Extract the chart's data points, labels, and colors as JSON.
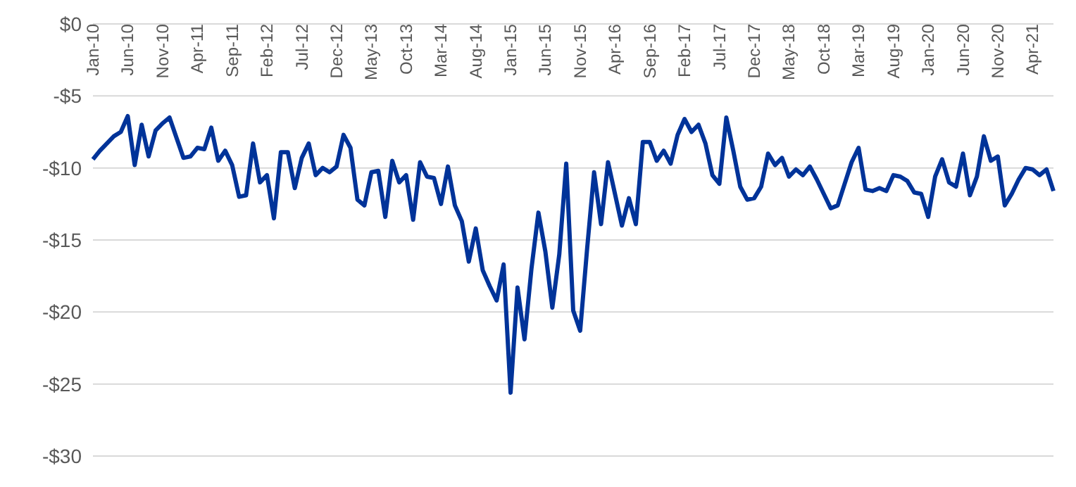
{
  "chart_data": {
    "type": "line",
    "categories": [
      "Jan-10",
      null,
      null,
      null,
      null,
      "Jun-10",
      null,
      null,
      null,
      null,
      "Nov-10",
      null,
      null,
      null,
      null,
      "Apr-11",
      null,
      null,
      null,
      null,
      "Sep-11",
      null,
      null,
      null,
      null,
      "Feb-12",
      null,
      null,
      null,
      null,
      "Jul-12",
      null,
      null,
      null,
      null,
      "Dec-12",
      null,
      null,
      null,
      null,
      "May-13",
      null,
      null,
      null,
      null,
      "Oct-13",
      null,
      null,
      null,
      null,
      "Mar-14",
      null,
      null,
      null,
      null,
      "Aug-14",
      null,
      null,
      null,
      null,
      "Jan-15",
      null,
      null,
      null,
      null,
      "Jun-15",
      null,
      null,
      null,
      null,
      "Nov-15",
      null,
      null,
      null,
      null,
      "Apr-16",
      null,
      null,
      null,
      null,
      "Sep-16",
      null,
      null,
      null,
      null,
      "Feb-17",
      null,
      null,
      null,
      null,
      "Jul-17",
      null,
      null,
      null,
      null,
      "Dec-17",
      null,
      null,
      null,
      null,
      "May-18",
      null,
      null,
      null,
      null,
      "Oct-18",
      null,
      null,
      null,
      null,
      "Mar-19",
      null,
      null,
      null,
      null,
      "Aug-19",
      null,
      null,
      null,
      null,
      "Jan-20",
      null,
      null,
      null,
      null,
      "Jun-20",
      null,
      null,
      null,
      null,
      "Nov-20",
      null,
      null,
      null,
      null,
      "Apr-21",
      null,
      null,
      null
    ],
    "series": [
      {
        "color": "#003399",
        "values": [
          -9.4,
          -8.8,
          -8.3,
          -7.8,
          -7.5,
          -6.4,
          -9.8,
          -7.0,
          -9.2,
          -7.4,
          -6.9,
          -6.5,
          -7.9,
          -9.3,
          -9.2,
          -8.6,
          -8.7,
          -7.2,
          -9.5,
          -8.8,
          -9.8,
          -12.0,
          -11.9,
          -8.3,
          -11.0,
          -10.5,
          -13.5,
          -8.9,
          -8.9,
          -11.4,
          -9.3,
          -8.3,
          -10.5,
          -10.0,
          -10.3,
          -9.9,
          -7.7,
          -8.6,
          -12.2,
          -12.6,
          -10.3,
          -10.2,
          -13.4,
          -9.5,
          -11.0,
          -10.5,
          -13.6,
          -9.6,
          -10.6,
          -10.7,
          -12.5,
          -9.9,
          -12.6,
          -13.7,
          -16.5,
          -14.2,
          -17.1,
          -18.2,
          -19.2,
          -16.7,
          -25.6,
          -18.3,
          -21.9,
          -17.0,
          -13.1,
          -15.8,
          -19.7,
          -16.0,
          -9.7,
          -19.9,
          -21.3,
          -15.6,
          -10.3,
          -13.9,
          -9.6,
          -11.8,
          -14.0,
          -12.1,
          -13.9,
          -8.2,
          -8.2,
          -9.5,
          -8.8,
          -9.7,
          -7.7,
          -6.6,
          -7.5,
          -7.0,
          -8.3,
          -10.5,
          -11.1,
          -6.5,
          -8.8,
          -11.3,
          -12.2,
          -12.1,
          -11.3,
          -9.0,
          -9.8,
          -9.3,
          -10.6,
          -10.1,
          -10.5,
          -9.9,
          -10.8,
          -11.8,
          -12.8,
          -12.6,
          -11.1,
          -9.6,
          -8.6,
          -11.5,
          -11.6,
          -11.4,
          -11.6,
          -10.5,
          -10.6,
          -10.9,
          -11.7,
          -11.8,
          -13.4,
          -10.6,
          -9.4,
          -11.0,
          -11.3,
          -9.0,
          -11.9,
          -10.6,
          -7.8,
          -9.5,
          -9.2,
          -12.6,
          -11.8,
          -10.8,
          -10.0,
          -10.1,
          -10.5,
          -10.1,
          -11.6
        ]
      }
    ],
    "ylim": [
      -30,
      0
    ],
    "yticks": [
      {
        "value": 0,
        "label": "$0"
      },
      {
        "value": -5,
        "label": "-$5"
      },
      {
        "value": -10,
        "label": "-$10"
      },
      {
        "value": -15,
        "label": "-$15"
      },
      {
        "value": -20,
        "label": "-$20"
      },
      {
        "value": -25,
        "label": "-$25"
      },
      {
        "value": -30,
        "label": "-$30"
      }
    ],
    "grid": "y",
    "marker": "none",
    "line_style": "solid",
    "legend": false
  }
}
